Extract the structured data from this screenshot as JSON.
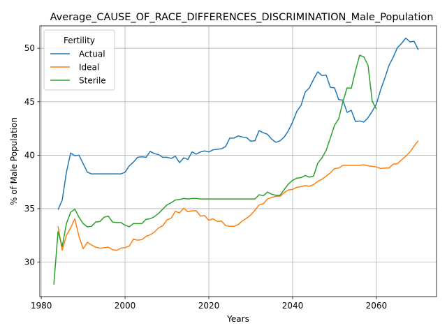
{
  "chart_data": {
    "type": "line",
    "title": "Average_CAUSE_OF_RACE_DIFFERENCES_DISCRIMINATION_Male_Population",
    "xlabel": "Years",
    "ylabel": "% of Male Population",
    "xlim": [
      1979.65,
      2074.35
    ],
    "ylim": [
      26.77,
      52.1
    ],
    "xticks": [
      1980,
      2000,
      2020,
      2040,
      2060
    ],
    "yticks": [
      30,
      35,
      40,
      45,
      50
    ],
    "grid": true,
    "legend": {
      "title": "Fertility",
      "position": "top-left"
    },
    "series": [
      {
        "name": "Actual",
        "color": "#1f77b4",
        "points": [
          [
            1984,
            34.9
          ],
          [
            1985,
            35.8
          ],
          [
            1986,
            38.4
          ],
          [
            1987,
            40.2
          ],
          [
            1988,
            39.95
          ],
          [
            1989,
            40.0
          ],
          [
            1990,
            39.2
          ],
          [
            1991,
            38.4
          ],
          [
            1992,
            38.25
          ],
          [
            1993,
            38.25
          ],
          [
            1994,
            38.25
          ],
          [
            1995,
            38.25
          ],
          [
            1996,
            38.25
          ],
          [
            1997,
            38.25
          ],
          [
            1998,
            38.25
          ],
          [
            1999,
            38.25
          ],
          [
            2000,
            38.4
          ],
          [
            2001,
            39.0
          ],
          [
            2002,
            39.35
          ],
          [
            2003,
            39.8
          ],
          [
            2004,
            39.85
          ],
          [
            2005,
            39.8
          ],
          [
            2006,
            40.35
          ],
          [
            2007,
            40.15
          ],
          [
            2008,
            40.05
          ],
          [
            2009,
            39.8
          ],
          [
            2010,
            39.8
          ],
          [
            2011,
            39.7
          ],
          [
            2012,
            39.9
          ],
          [
            2013,
            39.3
          ],
          [
            2014,
            39.75
          ],
          [
            2015,
            39.6
          ],
          [
            2016,
            40.3
          ],
          [
            2017,
            40.1
          ],
          [
            2018,
            40.3
          ],
          [
            2019,
            40.4
          ],
          [
            2020,
            40.3
          ],
          [
            2021,
            40.5
          ],
          [
            2022,
            40.55
          ],
          [
            2023,
            40.6
          ],
          [
            2024,
            40.8
          ],
          [
            2025,
            41.6
          ],
          [
            2026,
            41.6
          ],
          [
            2027,
            41.8
          ],
          [
            2028,
            41.7
          ],
          [
            2029,
            41.65
          ],
          [
            2030,
            41.3
          ],
          [
            2031,
            41.35
          ],
          [
            2032,
            42.3
          ],
          [
            2033,
            42.1
          ],
          [
            2034,
            41.95
          ],
          [
            2035,
            41.5
          ],
          [
            2036,
            41.2
          ],
          [
            2037,
            41.35
          ],
          [
            2038,
            41.7
          ],
          [
            2039,
            42.3
          ],
          [
            2040,
            43.1
          ],
          [
            2041,
            44.1
          ],
          [
            2042,
            44.65
          ],
          [
            2043,
            45.9
          ],
          [
            2044,
            46.3
          ],
          [
            2045,
            47.1
          ],
          [
            2046,
            47.8
          ],
          [
            2047,
            47.45
          ],
          [
            2048,
            47.5
          ],
          [
            2049,
            46.35
          ],
          [
            2050,
            46.3
          ],
          [
            2051,
            45.2
          ],
          [
            2052,
            45.15
          ],
          [
            2053,
            44.0
          ],
          [
            2054,
            44.2
          ],
          [
            2055,
            43.15
          ],
          [
            2056,
            43.2
          ],
          [
            2057,
            43.1
          ],
          [
            2058,
            43.5
          ],
          [
            2059,
            44.1
          ],
          [
            2060,
            44.8
          ],
          [
            2061,
            46.1
          ],
          [
            2062,
            47.2
          ],
          [
            2063,
            48.4
          ],
          [
            2064,
            49.15
          ],
          [
            2065,
            50.05
          ],
          [
            2066,
            50.45
          ],
          [
            2067,
            50.95
          ],
          [
            2068,
            50.6
          ],
          [
            2069,
            50.65
          ],
          [
            2070,
            49.85
          ]
        ]
      },
      {
        "name": "Ideal",
        "color": "#ff7f0e",
        "points": [
          [
            1984,
            33.35
          ],
          [
            1985,
            31.1
          ],
          [
            1986,
            32.5
          ],
          [
            1987,
            33.2
          ],
          [
            1988,
            34.05
          ],
          [
            1989,
            32.4
          ],
          [
            1990,
            31.25
          ],
          [
            1991,
            31.85
          ],
          [
            1992,
            31.6
          ],
          [
            1993,
            31.4
          ],
          [
            1994,
            31.3
          ],
          [
            1995,
            31.35
          ],
          [
            1996,
            31.4
          ],
          [
            1997,
            31.15
          ],
          [
            1998,
            31.1
          ],
          [
            1999,
            31.3
          ],
          [
            2000,
            31.35
          ],
          [
            2001,
            31.5
          ],
          [
            2002,
            32.15
          ],
          [
            2003,
            32.05
          ],
          [
            2004,
            32.1
          ],
          [
            2005,
            32.4
          ],
          [
            2006,
            32.55
          ],
          [
            2007,
            32.8
          ],
          [
            2008,
            33.2
          ],
          [
            2009,
            33.4
          ],
          [
            2010,
            33.95
          ],
          [
            2011,
            34.1
          ],
          [
            2012,
            34.75
          ],
          [
            2013,
            34.6
          ],
          [
            2014,
            35.05
          ],
          [
            2015,
            34.7
          ],
          [
            2016,
            34.8
          ],
          [
            2017,
            34.8
          ],
          [
            2018,
            34.3
          ],
          [
            2019,
            34.35
          ],
          [
            2020,
            33.9
          ],
          [
            2021,
            34.05
          ],
          [
            2022,
            33.8
          ],
          [
            2023,
            33.85
          ],
          [
            2024,
            33.4
          ],
          [
            2025,
            33.35
          ],
          [
            2026,
            33.35
          ],
          [
            2027,
            33.5
          ],
          [
            2028,
            33.85
          ],
          [
            2029,
            34.1
          ],
          [
            2030,
            34.4
          ],
          [
            2031,
            34.85
          ],
          [
            2032,
            35.35
          ],
          [
            2033,
            35.45
          ],
          [
            2034,
            35.9
          ],
          [
            2035,
            36.05
          ],
          [
            2036,
            36.15
          ],
          [
            2037,
            36.15
          ],
          [
            2038,
            36.5
          ],
          [
            2039,
            36.75
          ],
          [
            2040,
            36.8
          ],
          [
            2041,
            37.0
          ],
          [
            2042,
            37.05
          ],
          [
            2043,
            37.15
          ],
          [
            2044,
            37.1
          ],
          [
            2045,
            37.25
          ],
          [
            2046,
            37.55
          ],
          [
            2047,
            37.75
          ],
          [
            2048,
            38.05
          ],
          [
            2049,
            38.35
          ],
          [
            2050,
            38.75
          ],
          [
            2051,
            38.8
          ],
          [
            2052,
            39.05
          ],
          [
            2053,
            39.05
          ],
          [
            2054,
            39.05
          ],
          [
            2055,
            39.05
          ],
          [
            2056,
            39.05
          ],
          [
            2057,
            39.1
          ],
          [
            2058,
            39.0
          ],
          [
            2059,
            38.95
          ],
          [
            2060,
            38.9
          ],
          [
            2061,
            38.75
          ],
          [
            2062,
            38.8
          ],
          [
            2063,
            38.8
          ],
          [
            2064,
            39.15
          ],
          [
            2065,
            39.2
          ],
          [
            2066,
            39.55
          ],
          [
            2067,
            39.9
          ],
          [
            2068,
            40.3
          ],
          [
            2069,
            40.85
          ],
          [
            2070,
            41.35
          ]
        ]
      },
      {
        "name": "Sterile",
        "color": "#2ca02c",
        "points": [
          [
            1983,
            27.9
          ],
          [
            1984,
            32.85
          ],
          [
            1985,
            31.45
          ],
          [
            1986,
            33.6
          ],
          [
            1987,
            34.65
          ],
          [
            1988,
            34.95
          ],
          [
            1989,
            34.2
          ],
          [
            1990,
            33.6
          ],
          [
            1991,
            33.3
          ],
          [
            1992,
            33.35
          ],
          [
            1993,
            33.75
          ],
          [
            1994,
            33.8
          ],
          [
            1995,
            34.2
          ],
          [
            1996,
            34.3
          ],
          [
            1997,
            33.75
          ],
          [
            1998,
            33.7
          ],
          [
            1999,
            33.7
          ],
          [
            2000,
            33.45
          ],
          [
            2001,
            33.3
          ],
          [
            2002,
            33.6
          ],
          [
            2003,
            33.6
          ],
          [
            2004,
            33.6
          ],
          [
            2005,
            34.0
          ],
          [
            2006,
            34.05
          ],
          [
            2007,
            34.25
          ],
          [
            2008,
            34.55
          ],
          [
            2009,
            34.95
          ],
          [
            2010,
            35.35
          ],
          [
            2011,
            35.55
          ],
          [
            2012,
            35.8
          ],
          [
            2013,
            35.85
          ],
          [
            2014,
            35.95
          ],
          [
            2015,
            35.9
          ],
          [
            2016,
            35.95
          ],
          [
            2017,
            35.95
          ],
          [
            2018,
            35.9
          ],
          [
            2019,
            35.9
          ],
          [
            2020,
            35.9
          ],
          [
            2021,
            35.9
          ],
          [
            2022,
            35.9
          ],
          [
            2023,
            35.9
          ],
          [
            2024,
            35.9
          ],
          [
            2025,
            35.9
          ],
          [
            2026,
            35.9
          ],
          [
            2027,
            35.9
          ],
          [
            2028,
            35.9
          ],
          [
            2029,
            35.9
          ],
          [
            2030,
            35.9
          ],
          [
            2031,
            35.9
          ],
          [
            2032,
            36.3
          ],
          [
            2033,
            36.2
          ],
          [
            2034,
            36.55
          ],
          [
            2035,
            36.35
          ],
          [
            2036,
            36.25
          ],
          [
            2037,
            36.25
          ],
          [
            2038,
            36.8
          ],
          [
            2039,
            37.3
          ],
          [
            2040,
            37.65
          ],
          [
            2041,
            37.85
          ],
          [
            2042,
            37.9
          ],
          [
            2043,
            38.1
          ],
          [
            2044,
            37.95
          ],
          [
            2045,
            38.05
          ],
          [
            2046,
            39.25
          ],
          [
            2047,
            39.75
          ],
          [
            2048,
            40.45
          ],
          [
            2049,
            41.6
          ],
          [
            2050,
            42.8
          ],
          [
            2051,
            43.4
          ],
          [
            2052,
            45.0
          ],
          [
            2053,
            46.3
          ],
          [
            2054,
            46.25
          ],
          [
            2055,
            47.9
          ],
          [
            2056,
            49.35
          ],
          [
            2057,
            49.2
          ],
          [
            2058,
            48.4
          ],
          [
            2059,
            45.05
          ],
          [
            2060,
            44.3
          ]
        ]
      }
    ]
  }
}
